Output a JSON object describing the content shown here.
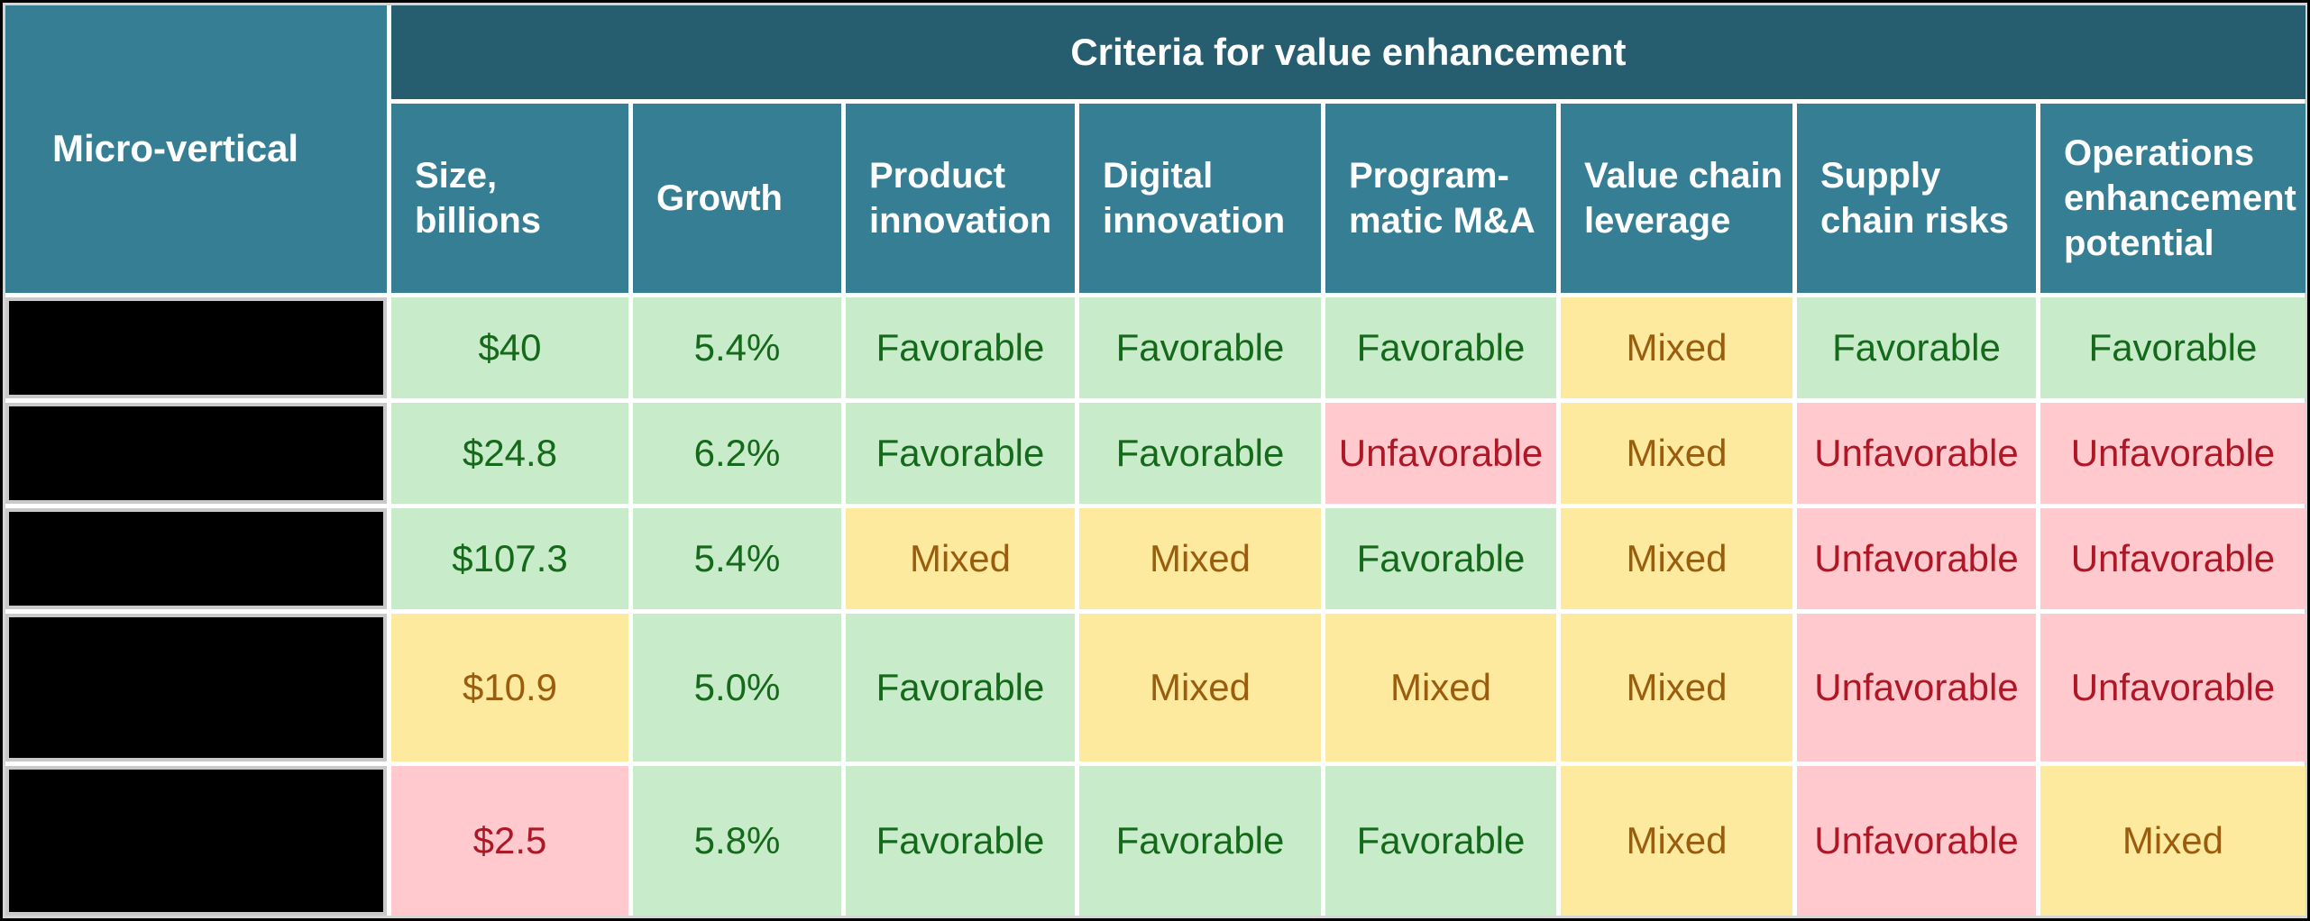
{
  "colors": {
    "header_dark_teal": "#265e70",
    "header_light_teal": "#367e94",
    "favorable_bg": "#c8ebc9",
    "favorable_text": "#15691b",
    "mixed_bg": "#fdea9e",
    "mixed_text": "#9a5d0e",
    "unfavorable_bg": "#ffc9ce",
    "unfavorable_text": "#ae1725",
    "grid_line": "#ffffff",
    "outer_border": "#d5d5d5",
    "redacted_cell": "#000000"
  },
  "chart_data": {
    "type": "table",
    "title": "Criteria for value enhancement",
    "row_header": "Micro-vertical",
    "group_header": "Criteria for value enhancement",
    "columns": [
      "Size, billions",
      "Growth",
      "Product\ninnovation",
      "Digital\ninnovation",
      "Program-\nmatic M&A",
      "Value chain\nleverage",
      "Supply\nchain risks",
      "Operations\nenhancement\npotential"
    ],
    "status_legend": {
      "favorable": "green",
      "mixed": "yellow",
      "unfavorable": "red",
      "redacted": "black box (micro-vertical name hidden)"
    },
    "rows": [
      {
        "label": "",
        "redacted": true,
        "cells": [
          {
            "text": "$40",
            "status": "favorable"
          },
          {
            "text": "5.4%",
            "status": "favorable"
          },
          {
            "text": "Favorable",
            "status": "favorable"
          },
          {
            "text": "Favorable",
            "status": "favorable"
          },
          {
            "text": "Favorable",
            "status": "favorable"
          },
          {
            "text": "Mixed",
            "status": "mixed"
          },
          {
            "text": "Favorable",
            "status": "favorable"
          },
          {
            "text": "Favorable",
            "status": "favorable"
          }
        ]
      },
      {
        "label": "",
        "redacted": true,
        "cells": [
          {
            "text": "$24.8",
            "status": "favorable"
          },
          {
            "text": "6.2%",
            "status": "favorable"
          },
          {
            "text": "Favorable",
            "status": "favorable"
          },
          {
            "text": "Favorable",
            "status": "favorable"
          },
          {
            "text": "Unfavorable",
            "status": "unfavorable"
          },
          {
            "text": "Mixed",
            "status": "mixed"
          },
          {
            "text": "Unfavorable",
            "status": "unfavorable"
          },
          {
            "text": "Unfavorable",
            "status": "unfavorable"
          }
        ]
      },
      {
        "label": "",
        "redacted": true,
        "cells": [
          {
            "text": "$107.3",
            "status": "favorable"
          },
          {
            "text": "5.4%",
            "status": "favorable"
          },
          {
            "text": "Mixed",
            "status": "mixed"
          },
          {
            "text": "Mixed",
            "status": "mixed"
          },
          {
            "text": "Favorable",
            "status": "favorable"
          },
          {
            "text": "Mixed",
            "status": "mixed"
          },
          {
            "text": "Unfavorable",
            "status": "unfavorable"
          },
          {
            "text": "Unfavorable",
            "status": "unfavorable"
          }
        ]
      },
      {
        "label": "",
        "redacted": true,
        "cells": [
          {
            "text": "$10.9",
            "status": "mixed"
          },
          {
            "text": "5.0%",
            "status": "favorable"
          },
          {
            "text": "Favorable",
            "status": "favorable"
          },
          {
            "text": "Mixed",
            "status": "mixed"
          },
          {
            "text": "Mixed",
            "status": "mixed"
          },
          {
            "text": "Mixed",
            "status": "mixed"
          },
          {
            "text": "Unfavorable",
            "status": "unfavorable"
          },
          {
            "text": "Unfavorable",
            "status": "unfavorable"
          }
        ]
      },
      {
        "label": "",
        "redacted": true,
        "cells": [
          {
            "text": "$2.5",
            "status": "unfavorable"
          },
          {
            "text": "5.8%",
            "status": "favorable"
          },
          {
            "text": "Favorable",
            "status": "favorable"
          },
          {
            "text": "Favorable",
            "status": "favorable"
          },
          {
            "text": "Favorable",
            "status": "favorable"
          },
          {
            "text": "Mixed",
            "status": "mixed"
          },
          {
            "text": "Unfavorable",
            "status": "unfavorable"
          },
          {
            "text": "Mixed",
            "status": "mixed"
          }
        ]
      }
    ]
  }
}
